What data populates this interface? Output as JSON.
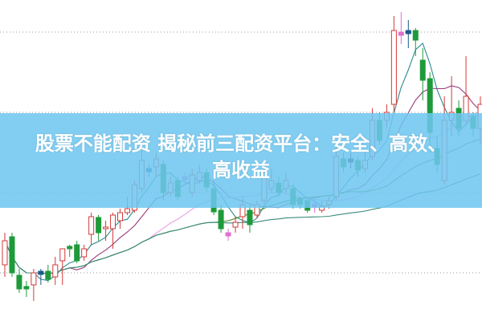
{
  "headline": {
    "line1": "股票不能配资 揭秘前三配资平台：安全、高效、",
    "line2": "高收益"
  },
  "colors": {
    "banner": "#6ec6f0",
    "up_candle": "#d23a3a",
    "down_candle": "#1e9a3a",
    "doji_markers": [
      "#1a1a2e",
      "#e070d0",
      "#1a5a8a"
    ],
    "ma_lines": [
      "#2a8a90",
      "#9a3a7a",
      "#e8a0e8",
      "#4a8a2a",
      "#3a8a7a"
    ]
  },
  "chart_data": {
    "type": "candlestick",
    "title": "",
    "axes_labels_shown": false,
    "grid": "horizontal dotted",
    "moving_averages_shown": 5,
    "candles_ohlc_note_order": [
      "open",
      "close",
      "high",
      "low"
    ],
    "candles": [
      [
        7.0,
        10.0,
        11.0,
        5.5
      ],
      [
        10.5,
        6.0,
        11.0,
        5.5
      ],
      [
        5.7,
        4.0,
        6.5,
        3.5
      ],
      [
        4.3,
        4.0,
        5.0,
        3.0
      ],
      [
        4.5,
        6.0,
        6.5,
        2.5
      ],
      [
        6.0,
        6.0,
        6.5,
        4.5
      ],
      [
        6.2,
        5.2,
        7.0,
        4.8
      ],
      [
        5.5,
        7.0,
        8.0,
        4.5
      ],
      [
        7.5,
        9.0,
        9.0,
        4.5
      ],
      [
        9.3,
        9.0,
        9.5,
        8.0
      ],
      [
        9.5,
        7.5,
        10.0,
        7.2
      ],
      [
        8.0,
        9.0,
        9.5,
        7.5
      ],
      [
        10.8,
        13.0,
        13.5,
        9.5
      ],
      [
        12.9,
        11.0,
        13.2,
        10.0
      ],
      [
        11.5,
        11.7,
        12.5,
        10.0
      ],
      [
        11.5,
        13.2,
        13.5,
        9.0
      ],
      [
        12.5,
        13.5,
        14.0,
        11.5
      ],
      [
        13.5,
        14.0,
        15.5,
        13.2
      ],
      [
        13.8,
        17.0,
        17.5,
        13.5
      ],
      [
        16.5,
        20.0,
        21.5,
        16.0
      ],
      [
        18.8,
        18.8,
        19.5,
        18.0
      ],
      [
        19.2,
        20.2,
        21.0,
        18.0
      ],
      [
        19.5,
        16.0,
        20.0,
        15.0
      ],
      [
        16.0,
        17.2,
        18.0,
        15.5
      ],
      [
        17.5,
        15.5,
        18.0,
        15.0
      ],
      [
        17.8,
        17.8,
        18.5,
        17.0
      ],
      [
        16.0,
        18.2,
        19.0,
        15.5
      ],
      [
        17.5,
        18.5,
        19.5,
        17.0
      ],
      [
        18.5,
        16.7,
        19.0,
        16.0
      ],
      [
        16.5,
        13.6,
        17.5,
        13.2
      ],
      [
        13.8,
        11.5,
        14.5,
        11.0
      ],
      [
        10.8,
        10.8,
        11.5,
        10.0
      ],
      [
        11.7,
        12.3,
        13.0,
        11.0
      ],
      [
        13.0,
        14.5,
        15.5,
        11.5
      ],
      [
        13.8,
        12.0,
        14.5,
        11.0
      ],
      [
        13.2,
        14.5,
        15.0,
        12.8
      ],
      [
        15.0,
        18.5,
        19.0,
        14.5
      ],
      [
        16.5,
        17.5,
        19.0,
        16.0
      ],
      [
        17.2,
        16.0,
        18.0,
        15.5
      ],
      [
        16.5,
        17.5,
        18.5,
        16.0
      ],
      [
        16.5,
        14.5,
        17.0,
        14.0
      ],
      [
        15.2,
        14.5,
        15.5,
        14.0
      ],
      [
        15.0,
        13.8,
        15.5,
        13.5
      ],
      [
        14.4,
        14.4,
        15.0,
        13.5
      ],
      [
        13.8,
        14.3,
        15.0,
        13.5
      ],
      [
        14.5,
        15.0,
        15.5,
        14.0
      ],
      [
        15.5,
        20.5,
        22.0,
        15.0
      ],
      [
        20.2,
        19.2,
        21.0,
        18.5
      ],
      [
        20.0,
        20.0,
        21.0,
        19.0
      ],
      [
        20.0,
        18.8,
        20.5,
        18.0
      ],
      [
        19.0,
        20.0,
        21.0,
        18.5
      ],
      [
        20.5,
        25.0,
        26.5,
        20.0
      ],
      [
        25.0,
        22.5,
        26.0,
        22.0
      ],
      [
        25.0,
        26.0,
        27.0,
        24.0
      ],
      [
        27.0,
        36.2,
        38.0,
        26.0
      ],
      [
        35.8,
        35.8,
        38.5,
        34.5
      ],
      [
        36.0,
        36.0,
        37.5,
        34.0
      ],
      [
        36.2,
        35.0,
        36.5,
        33.0
      ],
      [
        32.5,
        30.0,
        34.0,
        27.5
      ],
      [
        30.2,
        23.5,
        31.0,
        21.0
      ],
      [
        21.5,
        19.5,
        23.0,
        18.5
      ],
      [
        17.5,
        25.0,
        28.0,
        17.0
      ],
      [
        25.0,
        26.0,
        30.5,
        23.0
      ],
      [
        26.5,
        24.0,
        27.5,
        23.0
      ],
      [
        25.0,
        28.0,
        33.0,
        24.5
      ],
      [
        25.5,
        24.0,
        26.0,
        23.0
      ],
      [
        24.0,
        27.0,
        28.0,
        22.0
      ]
    ],
    "ylim": [
      0,
      40
    ],
    "gridlines_at": [
      6,
      16,
      26,
      36
    ]
  }
}
